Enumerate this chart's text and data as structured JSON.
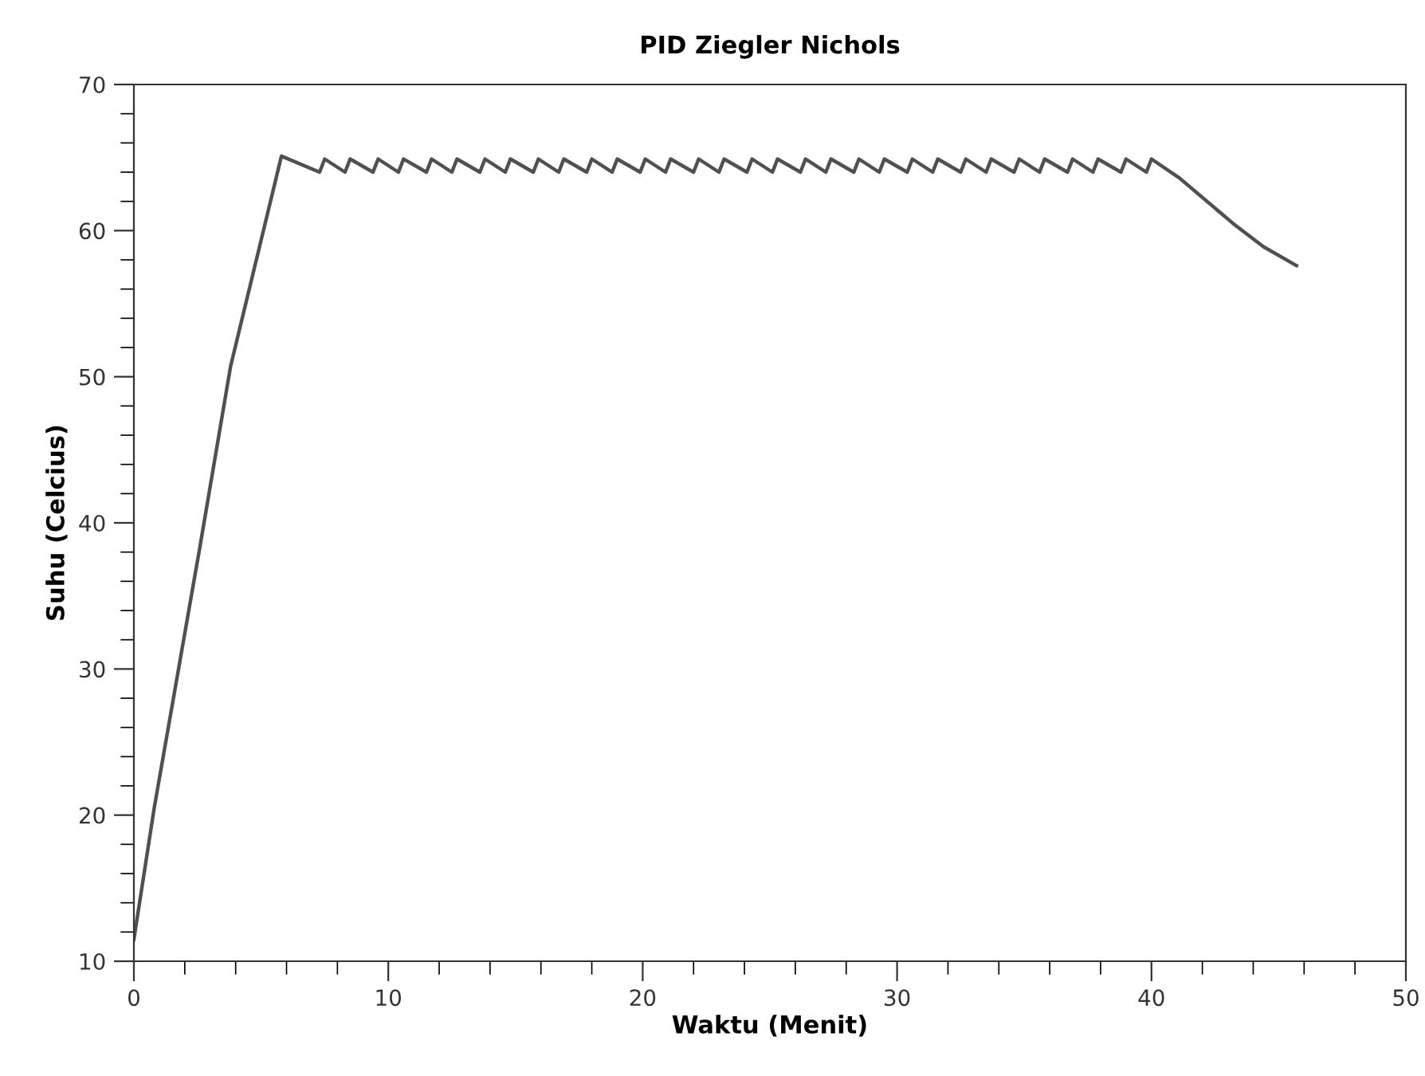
{
  "chart_data": {
    "type": "line",
    "title": "PID Ziegler Nichols",
    "xlabel": "Waktu (Menit)",
    "ylabel": "Suhu (Celcius)",
    "xlim": [
      0,
      50
    ],
    "ylim": [
      10,
      70
    ],
    "xticks": [
      0,
      {
        "value": 2,
        "label": null
      },
      {
        "value": 4,
        "label": null
      },
      {
        "value": 6,
        "label": null
      },
      {
        "value": 8,
        "label": null
      },
      10,
      {
        "value": 12,
        "label": null
      },
      {
        "value": 14,
        "label": null
      },
      {
        "value": 16,
        "label": null
      },
      {
        "value": 18,
        "label": null
      },
      20,
      {
        "value": 22,
        "label": null
      },
      {
        "value": 24,
        "label": null
      },
      {
        "value": 26,
        "label": null
      },
      {
        "value": 28,
        "label": null
      },
      30,
      {
        "value": 32,
        "label": null
      },
      {
        "value": 34,
        "label": null
      },
      {
        "value": 36,
        "label": null
      },
      {
        "value": 38,
        "label": null
      },
      40,
      {
        "value": 42,
        "label": null
      },
      {
        "value": 44,
        "label": null
      },
      {
        "value": 46,
        "label": null
      },
      {
        "value": 48,
        "label": null
      },
      50
    ],
    "yticks": [
      10,
      {
        "value": 12,
        "label": null
      },
      {
        "value": 14,
        "label": null
      },
      {
        "value": 16,
        "label": null
      },
      {
        "value": 18,
        "label": null
      },
      20,
      {
        "value": 22,
        "label": null
      },
      {
        "value": 24,
        "label": null
      },
      {
        "value": 26,
        "label": null
      },
      {
        "value": 28,
        "label": null
      },
      30,
      {
        "value": 32,
        "label": null
      },
      {
        "value": 34,
        "label": null
      },
      {
        "value": 36,
        "label": null
      },
      {
        "value": 38,
        "label": null
      },
      40,
      {
        "value": 42,
        "label": null
      },
      {
        "value": 44,
        "label": null
      },
      {
        "value": 46,
        "label": null
      },
      {
        "value": 48,
        "label": null
      },
      50,
      {
        "value": 52,
        "label": null
      },
      {
        "value": 54,
        "label": null
      },
      {
        "value": 56,
        "label": null
      },
      {
        "value": 58,
        "label": null
      },
      60,
      {
        "value": 62,
        "label": null
      },
      {
        "value": 64,
        "label": null
      },
      {
        "value": 66,
        "label": null
      },
      {
        "value": 68,
        "label": null
      },
      70
    ],
    "grid": false,
    "marker": "none",
    "line_style": "solid",
    "series": [
      {
        "color": "#505050",
        "x": [
          0,
          0.8,
          2.6,
          3.8,
          5.8,
          7.3,
          7.5,
          8.3,
          8.5,
          9.4,
          9.6,
          10.4,
          10.6,
          11.5,
          11.7,
          12.5,
          12.7,
          13.6,
          13.8,
          14.6,
          14.8,
          15.7,
          15.9,
          16.7,
          16.9,
          17.8,
          18.0,
          18.8,
          19.0,
          19.9,
          20.1,
          20.9,
          21.1,
          22.0,
          22.2,
          23.0,
          23.2,
          24.1,
          24.3,
          25.1,
          25.3,
          26.2,
          26.4,
          27.2,
          27.4,
          28.3,
          28.5,
          29.3,
          29.5,
          30.4,
          30.6,
          31.4,
          31.6,
          32.5,
          32.7,
          33.5,
          33.7,
          34.6,
          34.8,
          35.6,
          35.8,
          36.7,
          36.9,
          37.7,
          37.9,
          38.8,
          39.0,
          39.8,
          40.0,
          41.1,
          43.2,
          44.4,
          45.7
        ],
        "values": [
          11.5,
          20.5,
          38.4,
          50.7,
          65.1,
          64.0,
          64.9,
          64.0,
          64.9,
          64.0,
          64.9,
          64.0,
          64.9,
          64.0,
          64.9,
          64.0,
          64.9,
          64.0,
          64.9,
          64.0,
          64.9,
          64.0,
          64.9,
          64.0,
          64.9,
          64.0,
          64.9,
          64.0,
          64.9,
          64.0,
          64.9,
          64.0,
          64.9,
          64.0,
          64.9,
          64.0,
          64.9,
          64.0,
          64.9,
          64.0,
          64.9,
          64.0,
          64.9,
          64.0,
          64.9,
          64.0,
          64.9,
          64.0,
          64.9,
          64.0,
          64.9,
          64.0,
          64.9,
          64.0,
          64.9,
          64.0,
          64.9,
          64.0,
          64.9,
          64.0,
          64.9,
          64.0,
          64.9,
          64.0,
          64.9,
          64.0,
          64.9,
          64.0,
          64.9,
          63.6,
          60.5,
          58.9,
          57.6
        ]
      }
    ]
  }
}
